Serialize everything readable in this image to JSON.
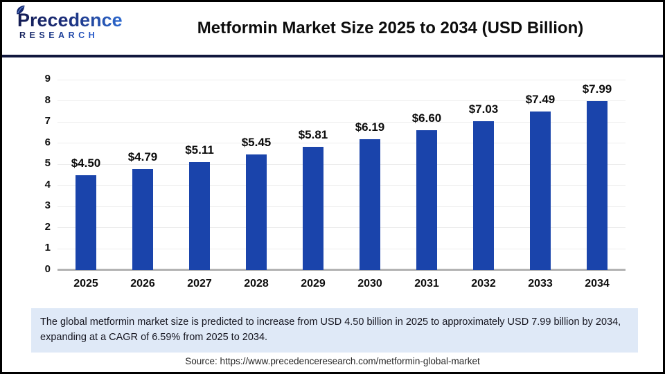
{
  "header": {
    "logo_line1": "Precedence",
    "logo_line2": "RESEARCH",
    "title": "Metformin Market Size 2025 to 2034 (USD Billion)"
  },
  "chart_data": {
    "type": "bar",
    "title": "Metformin Market Size 2025 to 2034 (USD Billion)",
    "categories": [
      "2025",
      "2026",
      "2027",
      "2028",
      "2029",
      "2030",
      "2031",
      "2032",
      "2033",
      "2034"
    ],
    "values": [
      4.5,
      4.79,
      5.11,
      5.45,
      5.81,
      6.19,
      6.6,
      7.03,
      7.49,
      7.99
    ],
    "value_labels": [
      "$4.50",
      "$4.79",
      "$5.11",
      "$5.45",
      "$5.81",
      "$6.19",
      "$6.60",
      "$7.03",
      "$7.49",
      "$7.99"
    ],
    "ylabel": "",
    "xlabel": "",
    "unit": "USD Billion",
    "ylim": [
      0,
      9
    ],
    "yticks": [
      0,
      1,
      2,
      3,
      4,
      5,
      6,
      7,
      8,
      9
    ],
    "grid": true,
    "legend": false,
    "bar_color": "#1a44ab"
  },
  "note": {
    "text": "The global metformin market size is predicted to increase from USD 4.50 billion in 2025 to approximately USD 7.99 billion by 2034, expanding at a CAGR of 6.59% from 2025 to 2034."
  },
  "source": {
    "text": "Source: https://www.precedenceresearch.com/metformin-global-market"
  },
  "colors": {
    "bar_blue": "#1a44ab",
    "divider_navy": "#10173d",
    "note_bg": "#dfe9f7",
    "gridline": "#ededed",
    "baseline": "#b3b3b3"
  }
}
